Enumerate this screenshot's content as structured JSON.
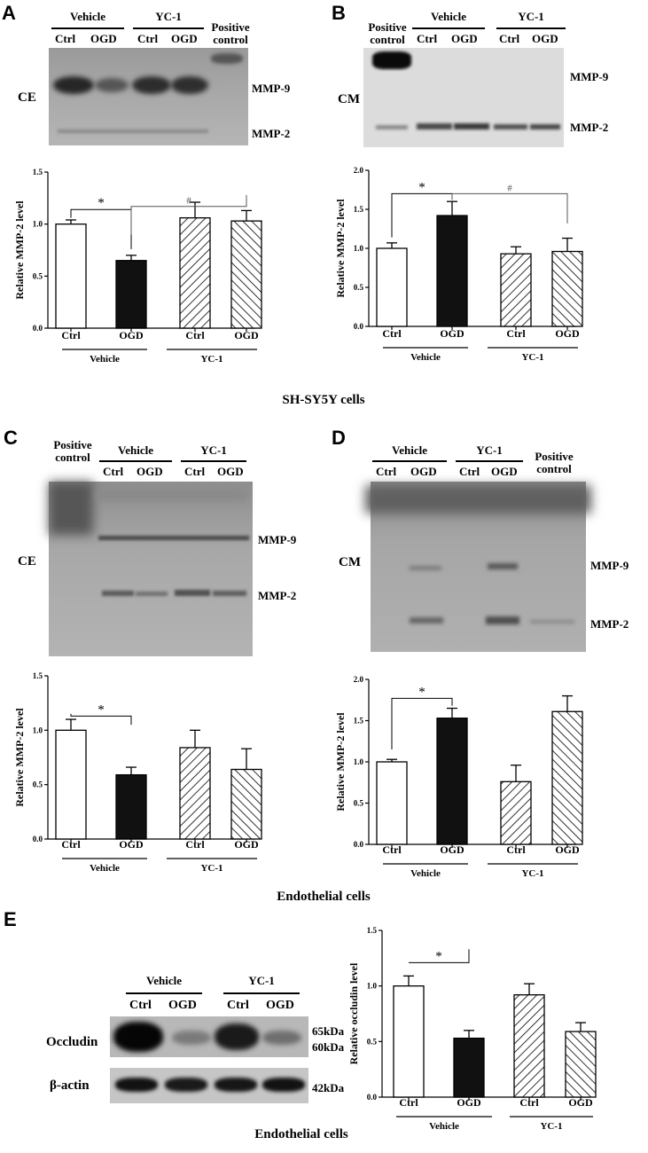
{
  "panel_a": {
    "letter": "A",
    "groups": {
      "vehicle": "Vehicle",
      "yc1": "YC-1"
    },
    "lanes": {
      "ctrl1": "Ctrl",
      "ogd1": "OGD",
      "ctrl2": "Ctrl",
      "ogd2": "OGD"
    },
    "positive_control": [
      "Positive",
      "control"
    ],
    "sample_label": "CE",
    "bands": {
      "mmp9": "MMP-9",
      "mmp2": "MMP-2"
    },
    "sig": {
      "star": "*",
      "hash": "#"
    }
  },
  "panel_b": {
    "letter": "B",
    "groups": {
      "vehicle": "Vehicle",
      "yc1": "YC-1"
    },
    "lanes": {
      "ctrl1": "Ctrl",
      "ogd1": "OGD",
      "ctrl2": "Ctrl",
      "ogd2": "OGD"
    },
    "positive_control": [
      "Positive",
      "control"
    ],
    "sample_label": "CM",
    "bands": {
      "mmp9": "MMP-9",
      "mmp2": "MMP-2"
    },
    "sig": {
      "star": "*",
      "hash": "#"
    }
  },
  "caption_ab": "SH-SY5Y cells",
  "panel_c": {
    "letter": "C",
    "groups": {
      "vehicle": "Vehicle",
      "yc1": "YC-1"
    },
    "lanes": {
      "ctrl1": "Ctrl",
      "ogd1": "OGD",
      "ctrl2": "Ctrl",
      "ogd2": "OGD"
    },
    "positive_control": [
      "Positive",
      "control"
    ],
    "sample_label": "CE",
    "bands": {
      "mmp9": "MMP-9",
      "mmp2": "MMP-2"
    },
    "sig": {
      "star": "*"
    }
  },
  "panel_d": {
    "letter": "D",
    "groups": {
      "vehicle": "Vehicle",
      "yc1": "YC-1"
    },
    "lanes": {
      "ctrl1": "Ctrl",
      "ogd1": "OGD",
      "ctrl2": "Ctrl",
      "ogd2": "OGD"
    },
    "positive_control": [
      "Positive",
      "control"
    ],
    "sample_label": "CM",
    "bands": {
      "mmp9": "MMP-9",
      "mmp2": "MMP-2"
    },
    "sig": {
      "star": "*"
    }
  },
  "caption_cd": "Endothelial cells",
  "panel_e": {
    "letter": "E",
    "groups": {
      "vehicle": "Vehicle",
      "yc1": "YC-1"
    },
    "lanes": {
      "ctrl1": "Ctrl",
      "ogd1": "OGD",
      "ctrl2": "Ctrl",
      "ogd2": "OGD"
    },
    "rows": {
      "occludin": "Occludin",
      "actin": "β-actin"
    },
    "sizes": {
      "s65": "65kDa",
      "s60": "60kDa",
      "s42": "42kDa"
    },
    "sig": {
      "star": "*"
    }
  },
  "caption_e": "Endothelial cells",
  "chart_data": [
    {
      "id": "A",
      "type": "bar",
      "categories": [
        "Ctrl",
        "OGD",
        "Ctrl",
        "OGD"
      ],
      "groups": [
        "Vehicle",
        "YC-1"
      ],
      "values": [
        1.0,
        0.65,
        1.06,
        1.03
      ],
      "errors": [
        0.04,
        0.05,
        0.15,
        0.1
      ],
      "ylabel": "Relative MMP-2 level",
      "ylim": [
        0,
        1.5
      ],
      "yticks": [
        0.0,
        0.5,
        1.0,
        1.5
      ],
      "fills": [
        "white",
        "black",
        "hatch-right",
        "hatch-left"
      ]
    },
    {
      "id": "B",
      "type": "bar",
      "categories": [
        "Ctrl",
        "OGD",
        "Ctrl",
        "OGD"
      ],
      "groups": [
        "Vehicle",
        "YC-1"
      ],
      "values": [
        1.0,
        1.42,
        0.93,
        0.96
      ],
      "errors": [
        0.07,
        0.18,
        0.09,
        0.17
      ],
      "ylabel": "Relative MMP-2 level",
      "ylim": [
        0,
        2.0
      ],
      "yticks": [
        0.0,
        0.5,
        1.0,
        1.5,
        2.0
      ],
      "fills": [
        "white",
        "black",
        "hatch-right",
        "hatch-left"
      ]
    },
    {
      "id": "C",
      "type": "bar",
      "categories": [
        "Ctrl",
        "OGD",
        "Ctrl",
        "OGD"
      ],
      "groups": [
        "Vehicle",
        "YC-1"
      ],
      "values": [
        1.0,
        0.59,
        0.84,
        0.64
      ],
      "errors": [
        0.1,
        0.07,
        0.16,
        0.19
      ],
      "ylabel": "Relative MMP-2 level",
      "ylim": [
        0,
        1.5
      ],
      "yticks": [
        0.0,
        0.5,
        1.0,
        1.5
      ],
      "fills": [
        "white",
        "black",
        "hatch-right",
        "hatch-left"
      ]
    },
    {
      "id": "D",
      "type": "bar",
      "categories": [
        "Ctrl",
        "OGD",
        "Ctrl",
        "OGD"
      ],
      "groups": [
        "Vehicle",
        "YC-1"
      ],
      "values": [
        1.0,
        1.53,
        0.76,
        1.61
      ],
      "errors": [
        0.03,
        0.12,
        0.2,
        0.19
      ],
      "ylabel": "Relative MMP-2 level",
      "ylim": [
        0,
        2.0
      ],
      "yticks": [
        0.0,
        0.5,
        1.0,
        1.5,
        2.0
      ],
      "fills": [
        "white",
        "black",
        "hatch-right",
        "hatch-left"
      ]
    },
    {
      "id": "E",
      "type": "bar",
      "categories": [
        "Ctrl",
        "OGD",
        "Ctrl",
        "OGD"
      ],
      "groups": [
        "Vehicle",
        "YC-1"
      ],
      "values": [
        1.0,
        0.53,
        0.92,
        0.59
      ],
      "errors": [
        0.09,
        0.07,
        0.1,
        0.08
      ],
      "ylabel": "Relative occludin level",
      "ylim": [
        0,
        1.5
      ],
      "yticks": [
        0.0,
        0.5,
        1.0,
        1.5
      ],
      "fills": [
        "white",
        "black",
        "hatch-right",
        "hatch-left"
      ]
    }
  ]
}
